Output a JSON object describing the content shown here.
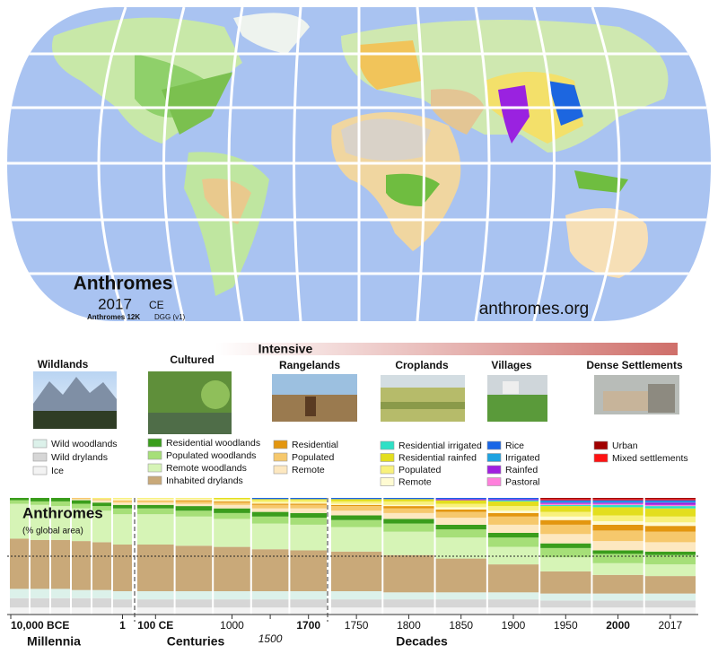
{
  "map": {
    "title": "Anthromes",
    "year": "2017",
    "era": "CE",
    "dataset": "Anthromes 12K",
    "version": "DGG (v1)",
    "website": "anthromes.org"
  },
  "legend_header": "Intensive",
  "chart_data": {
    "type": "stacked-bar",
    "title": "Anthromes",
    "subtitle": "(% global area)",
    "categories": [
      "10,000 BCE",
      null,
      null,
      null,
      null,
      "1",
      "100 CE",
      null,
      "1000",
      "1500",
      "1700",
      "1750",
      "1800",
      "1850",
      "1900",
      "1950",
      "2000",
      "2017"
    ],
    "sections": [
      "Millennia",
      "Centuries",
      "Decades"
    ],
    "ylim": [
      0,
      100
    ],
    "reference_line": 50,
    "groups": [
      {
        "title": "Wildlands",
        "series": [
          {
            "name": "Wild woodlands",
            "color": "#dcf1ea",
            "values": [
              8,
              8,
              8,
              7,
              7,
              7,
              7,
              7,
              7,
              7,
              7,
              7,
              6,
              6,
              6,
              6,
              6,
              6
            ]
          },
          {
            "name": "Wild drylands",
            "color": "#d6d6d6",
            "values": [
              8,
              8,
              8,
              8,
              8,
              7,
              7,
              7,
              7,
              7,
              7,
              7,
              7,
              7,
              7,
              6,
              6,
              6
            ]
          },
          {
            "name": "Ice",
            "color": "#f3f3f3",
            "values": [
              6,
              6,
              6,
              6,
              6,
              6,
              6,
              6,
              6,
              6,
              6,
              6,
              6,
              6,
              6,
              6,
              6,
              6
            ]
          }
        ]
      },
      {
        "title": "Cultured",
        "series": [
          {
            "name": "Residential woodlands",
            "color": "#3a9d1c",
            "values": [
              2,
              3,
              3,
              3,
              3,
              3,
              3,
              4,
              4,
              4,
              4,
              4,
              4,
              4,
              4,
              4,
              3,
              3
            ]
          },
          {
            "name": "Populated woodlands",
            "color": "#a6df78",
            "values": [
              3,
              3,
              4,
              4,
              4,
              5,
              5,
              5,
              5,
              6,
              6,
              6,
              7,
              7,
              8,
              8,
              8,
              8
            ]
          },
          {
            "name": "Remote woodlands",
            "color": "#d6f4b6",
            "values": [
              30,
              30,
              29,
              28,
              27,
              26,
              26,
              25,
              24,
              22,
              22,
              21,
              20,
              18,
              15,
              12,
              10,
              10
            ]
          },
          {
            "name": "Inhabited drylands",
            "color": "#c9a979",
            "values": [
              43,
              42,
              42,
              42,
              41,
              40,
              40,
              39,
              38,
              36,
              35,
              34,
              32,
              29,
              24,
              19,
              16,
              15
            ]
          }
        ]
      },
      {
        "title": "Rangelands",
        "series": [
          {
            "name": "Residential",
            "color": "#e3960f",
            "values": [
              0,
              0,
              0,
              0,
              0,
              0,
              0,
              1,
              1,
              1,
              1,
              1,
              2,
              2,
              3,
              4,
              5,
              5
            ]
          },
          {
            "name": "Populated",
            "color": "#f6c86c",
            "values": [
              0,
              0,
              0,
              1,
              1,
              2,
              2,
              2,
              2,
              3,
              3,
              4,
              4,
              5,
              7,
              8,
              9,
              9
            ]
          },
          {
            "name": "Remote",
            "color": "#fde8c0",
            "values": [
              0,
              0,
              0,
              1,
              2,
              2,
              2,
              2,
              3,
              3,
              4,
              4,
              5,
              6,
              7,
              8,
              8,
              8
            ]
          }
        ]
      },
      {
        "title": "Croplands",
        "series": [
          {
            "name": "Residential irrigated",
            "color": "#2fe0c6",
            "values": [
              0,
              0,
              0,
              0,
              0,
              0,
              0,
              0,
              0,
              0,
              0,
              0,
              0,
              0,
              1,
              1,
              2,
              2
            ]
          },
          {
            "name": "Residential rainfed",
            "color": "#e3de1e",
            "values": [
              0,
              0,
              0,
              0,
              0,
              0,
              0,
              0,
              1,
              1,
              1,
              2,
              2,
              3,
              4,
              5,
              7,
              7
            ]
          },
          {
            "name": "Populated",
            "color": "#f8f17c",
            "values": [
              0,
              0,
              0,
              0,
              1,
              1,
              1,
              1,
              1,
              2,
              2,
              2,
              3,
              3,
              4,
              4,
              5,
              5
            ]
          },
          {
            "name": "Remote",
            "color": "#fffbd2",
            "values": [
              0,
              0,
              0,
              0,
              0,
              1,
              1,
              1,
              1,
              1,
              1,
              1,
              1,
              2,
              2,
              3,
              3,
              3
            ]
          }
        ]
      },
      {
        "title": "Villages",
        "series": [
          {
            "name": "Rice",
            "color": "#1865e6",
            "values": [
              0,
              0,
              0,
              0,
              0,
              0,
              0,
              0,
              0,
              1,
              1,
              1,
              1,
              1,
              1,
              1,
              1,
              1
            ]
          },
          {
            "name": "Irrigated",
            "color": "#1ea3e0",
            "values": [
              0,
              0,
              0,
              0,
              0,
              0,
              0,
              0,
              0,
              0,
              0,
              0,
              0,
              0,
              0,
              1,
              1,
              1
            ]
          },
          {
            "name": "Rainfed",
            "color": "#a01fe0",
            "values": [
              0,
              0,
              0,
              0,
              0,
              0,
              0,
              0,
              0,
              0,
              0,
              0,
              0,
              1,
              1,
              1,
              1,
              2
            ]
          },
          {
            "name": "Pastoral",
            "color": "#ff80dc",
            "values": [
              0,
              0,
              0,
              0,
              0,
              0,
              0,
              0,
              0,
              0,
              0,
              0,
              0,
              0,
              0,
              1,
              1,
              1
            ]
          }
        ]
      },
      {
        "title": "Dense Settlements",
        "series": [
          {
            "name": "Urban",
            "color": "#a00000",
            "values": [
              0,
              0,
              0,
              0,
              0,
              0,
              0,
              0,
              0,
              0,
              0,
              0,
              0,
              0,
              0,
              1,
              1,
              1
            ]
          },
          {
            "name": "Mixed settlements",
            "color": "#ff1212",
            "values": [
              0,
              0,
              0,
              0,
              0,
              0,
              0,
              0,
              0,
              0,
              0,
              0,
              0,
              0,
              0,
              1,
              1,
              1
            ]
          }
        ]
      }
    ]
  }
}
